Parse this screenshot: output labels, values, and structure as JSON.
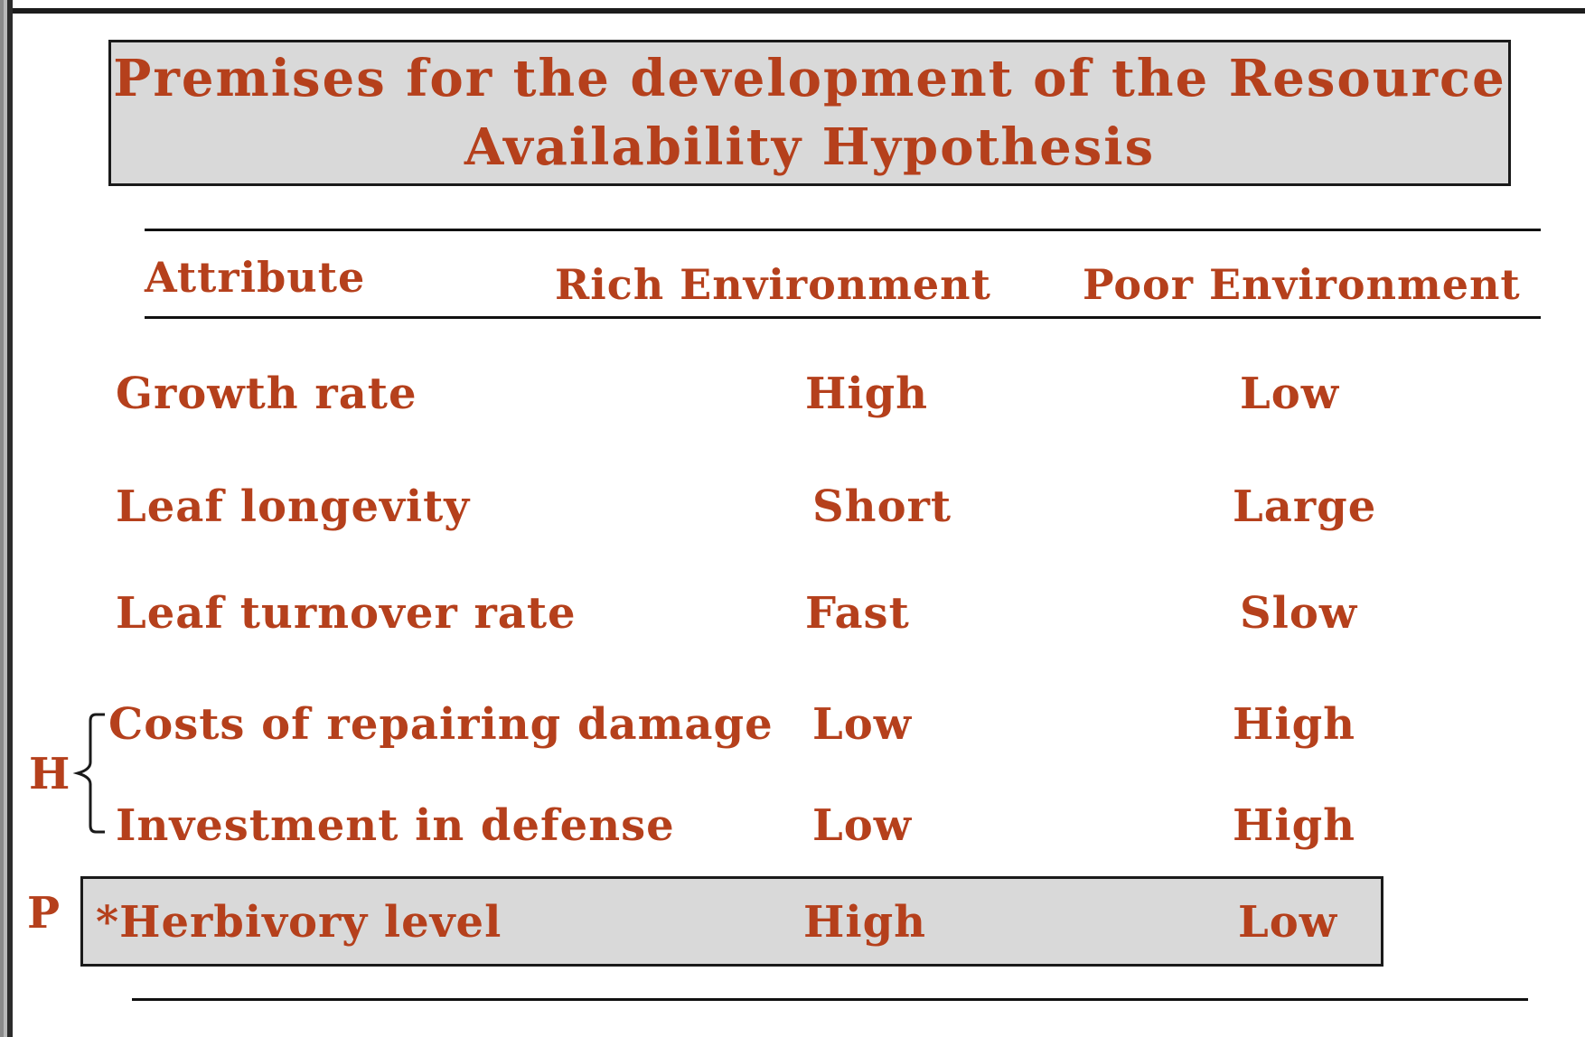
{
  "title": {
    "line1": "Premises for the development of the Resource",
    "line2": "Availability Hypothesis"
  },
  "table": {
    "headers": {
      "attribute": "Attribute",
      "rich": "Rich Environment",
      "poor": "Poor Environment"
    },
    "rows": [
      {
        "attribute": "Growth rate",
        "rich": "High",
        "poor": "Low"
      },
      {
        "attribute": "Leaf longevity",
        "rich": "Short",
        "poor": "Large"
      },
      {
        "attribute": "Leaf turnover rate",
        "rich": "Fast",
        "poor": "Slow"
      },
      {
        "attribute": "Costs of repairing damage",
        "rich": "Low",
        "poor": "High"
      },
      {
        "attribute": "Investment in defense",
        "rich": "Low",
        "poor": "High"
      },
      {
        "attribute": "*Herbivory level",
        "rich": "High",
        "poor": "Low"
      }
    ]
  },
  "markers": {
    "h": "H",
    "p": "P"
  },
  "colors": {
    "text": "#b5401c",
    "box_fill": "#d9d9d9",
    "rule": "#111111"
  }
}
